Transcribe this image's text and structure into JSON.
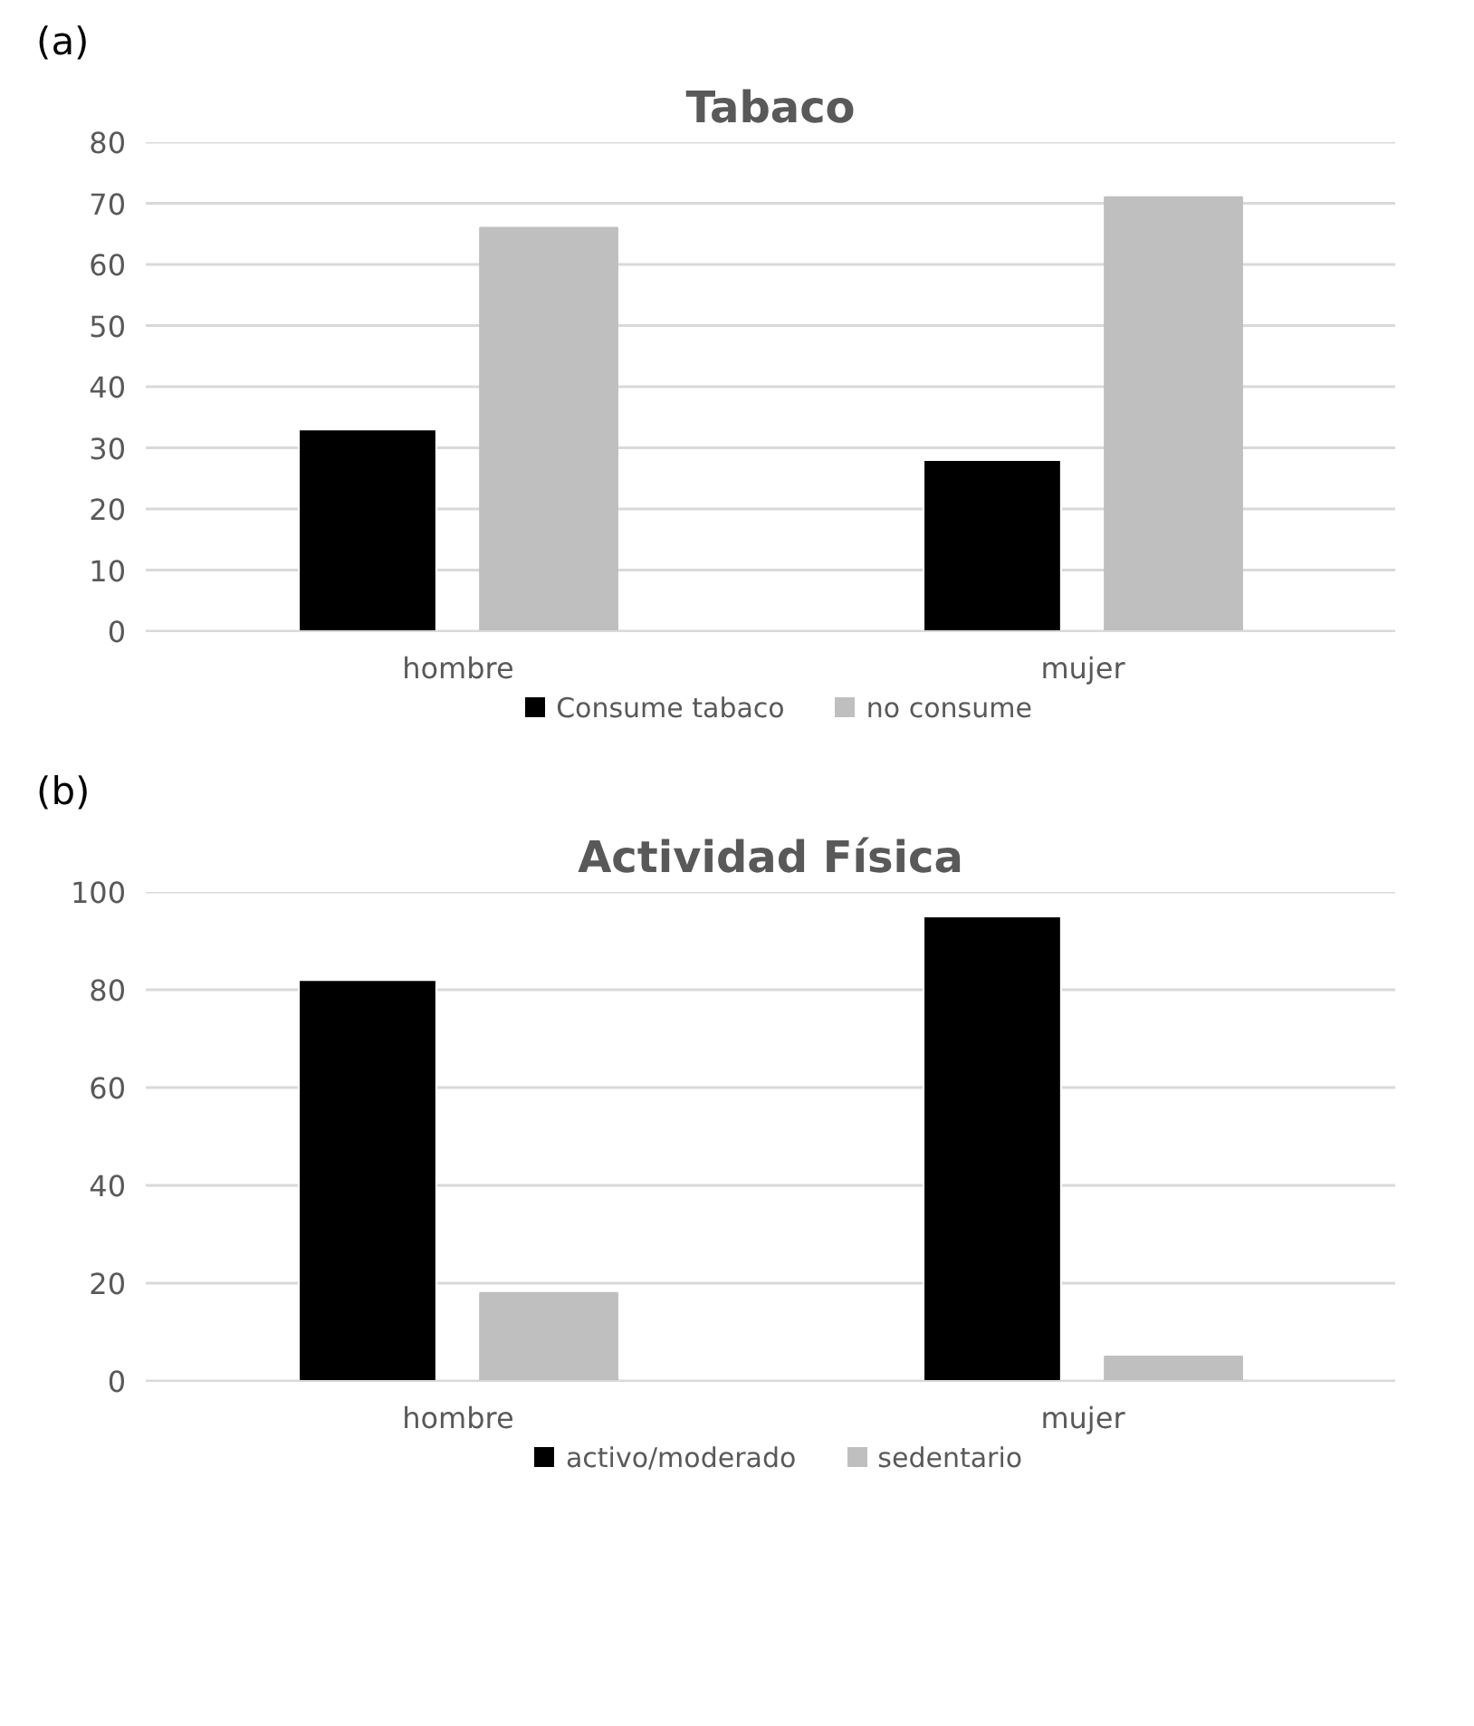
{
  "chart_data": [
    {
      "type": "bar",
      "title": "Tabaco",
      "annotations": [
        "(a)"
      ],
      "categories": [
        "hombre",
        "mujer"
      ],
      "series": [
        {
          "name": "Consume tabaco",
          "color": "#000000",
          "values": [
            33,
            28
          ]
        },
        {
          "name": "no consume",
          "color": "#bfbfbf",
          "values": [
            66,
            71
          ]
        }
      ],
      "ylim": [
        0,
        80
      ],
      "yticks": [
        0,
        10,
        20,
        30,
        40,
        50,
        60,
        70,
        80
      ],
      "grid": "y",
      "legend": "bottom"
    },
    {
      "type": "bar",
      "title": "Actividad Física",
      "annotations": [
        "(b)"
      ],
      "categories": [
        "hombre",
        "mujer"
      ],
      "series": [
        {
          "name": "activo/moderado",
          "color": "#000000",
          "values": [
            82,
            95
          ]
        },
        {
          "name": "sedentario",
          "color": "#bfbfbf",
          "values": [
            18,
            5
          ]
        }
      ],
      "ylim": [
        0,
        100
      ],
      "yticks": [
        0,
        20,
        40,
        60,
        80,
        100
      ],
      "grid": "y",
      "legend": "bottom"
    }
  ]
}
